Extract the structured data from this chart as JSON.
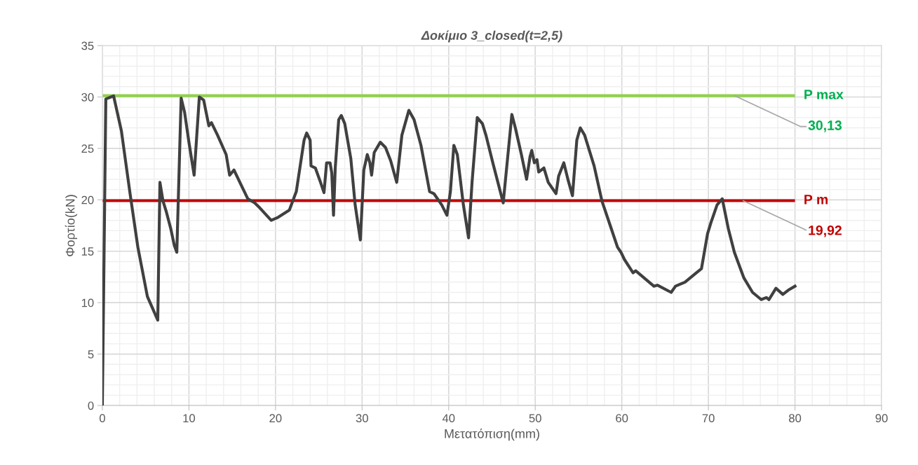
{
  "chart_data": {
    "type": "line",
    "title": "Δοκίμιο 3_closed(t=2,5)",
    "xlabel": "Μετατόπιση(mm)",
    "ylabel": "Φορτίο(kN)",
    "xlim": [
      0,
      90
    ],
    "xticks": [
      0,
      10,
      20,
      30,
      40,
      50,
      60,
      70,
      80,
      90
    ],
    "ylim": [
      0,
      35
    ],
    "yticks": [
      0,
      5,
      10,
      15,
      20,
      25,
      30,
      35
    ],
    "grid": true,
    "legend": false,
    "marker": "none",
    "line_style": "solid",
    "series": [
      {
        "color": "#404040",
        "x": [
          0,
          0.4,
          1.3,
          2.2,
          3.2,
          4.1,
          5.2,
          6.4,
          6.65,
          7.0,
          7.4,
          7.9,
          8.3,
          8.6,
          9.1,
          9.5,
          10.0,
          10.6,
          11.2,
          11.7,
          12.3,
          12.6,
          13.3,
          14.3,
          14.7,
          15.2,
          16.0,
          16.8,
          17.6,
          18.2,
          19.5,
          20.3,
          21.6,
          22.4,
          23.3,
          23.6,
          24.0,
          24.1,
          24.6,
          25.2,
          25.6,
          25.9,
          26.3,
          26.5,
          26.7,
          26.9,
          27.3,
          27.6,
          28.0,
          28.7,
          29.2,
          29.8,
          30.2,
          30.6,
          30.9,
          31.1,
          31.4,
          32.1,
          32.7,
          33.3,
          34.0,
          34.6,
          35.4,
          36.0,
          36.8,
          37.8,
          38.3,
          39.2,
          39.8,
          40.2,
          40.6,
          41.0,
          41.7,
          42.3,
          42.7,
          43.3,
          43.9,
          44.3,
          45.1,
          46.3,
          46.8,
          47.3,
          47.7,
          48.4,
          49.0,
          49.4,
          49.6,
          49.9,
          50.2,
          50.4,
          51.0,
          51.5,
          52.4,
          52.7,
          53.3,
          53.8,
          54.3,
          54.8,
          55.2,
          55.7,
          56.8,
          57.7,
          58.7,
          59.5,
          59.9,
          60.3,
          61.3,
          61.6,
          63.7,
          64.1,
          65.7,
          66.2,
          67.3,
          68.6,
          69.2,
          69.9,
          70.3,
          71.0,
          71.6,
          72.3,
          73.0,
          74.1,
          75.1,
          76.1,
          76.7,
          77.0,
          77.8,
          78.6,
          79.2,
          80.0
        ],
        "values": [
          0,
          29.8,
          30.1,
          26.7,
          20.6,
          15.4,
          10.6,
          8.3,
          21.7,
          19.9,
          18.8,
          17.2,
          15.6,
          14.9,
          29.9,
          28.5,
          25.6,
          22.4,
          30.0,
          29.7,
          27.2,
          27.5,
          26.3,
          24.4,
          22.4,
          22.9,
          21.5,
          20.1,
          19.7,
          19.2,
          18.0,
          18.3,
          19.0,
          20.8,
          25.8,
          26.5,
          25.8,
          23.3,
          23.1,
          21.7,
          20.7,
          23.6,
          23.6,
          22.6,
          18.5,
          23.1,
          27.8,
          28.2,
          27.4,
          24.0,
          19.5,
          16.1,
          22.9,
          24.4,
          23.6,
          22.4,
          24.6,
          25.6,
          25.1,
          23.8,
          21.7,
          26.3,
          28.7,
          27.8,
          25.3,
          20.8,
          20.6,
          19.5,
          18.5,
          20.8,
          25.3,
          24.4,
          19.5,
          16.3,
          21.7,
          28.0,
          27.4,
          26.3,
          23.6,
          19.7,
          24.0,
          28.3,
          27.0,
          24.4,
          22.0,
          24.2,
          24.8,
          23.6,
          23.9,
          22.7,
          23.1,
          21.7,
          20.6,
          22.3,
          23.6,
          21.9,
          20.4,
          25.8,
          27.0,
          26.3,
          23.3,
          19.9,
          17.4,
          15.4,
          14.9,
          14.2,
          12.9,
          13.1,
          11.6,
          11.7,
          11.0,
          11.6,
          12.0,
          12.9,
          13.3,
          16.7,
          17.8,
          19.5,
          20.1,
          17.2,
          14.9,
          12.4,
          11.0,
          10.3,
          10.5,
          10.3,
          11.4,
          10.8,
          11.2,
          11.6
        ]
      }
    ],
    "ref_lines": [
      {
        "axis": "y",
        "value": 30.13,
        "label": "P max",
        "color": "#92d050"
      },
      {
        "axis": "y",
        "value": 19.92,
        "label": "P m",
        "color": "#c00000"
      }
    ],
    "annotations": [
      {
        "text": "30,13",
        "x": 73,
        "y": 30.13
      },
      {
        "text": "19,92",
        "x": 74,
        "y": 19.92
      }
    ]
  }
}
